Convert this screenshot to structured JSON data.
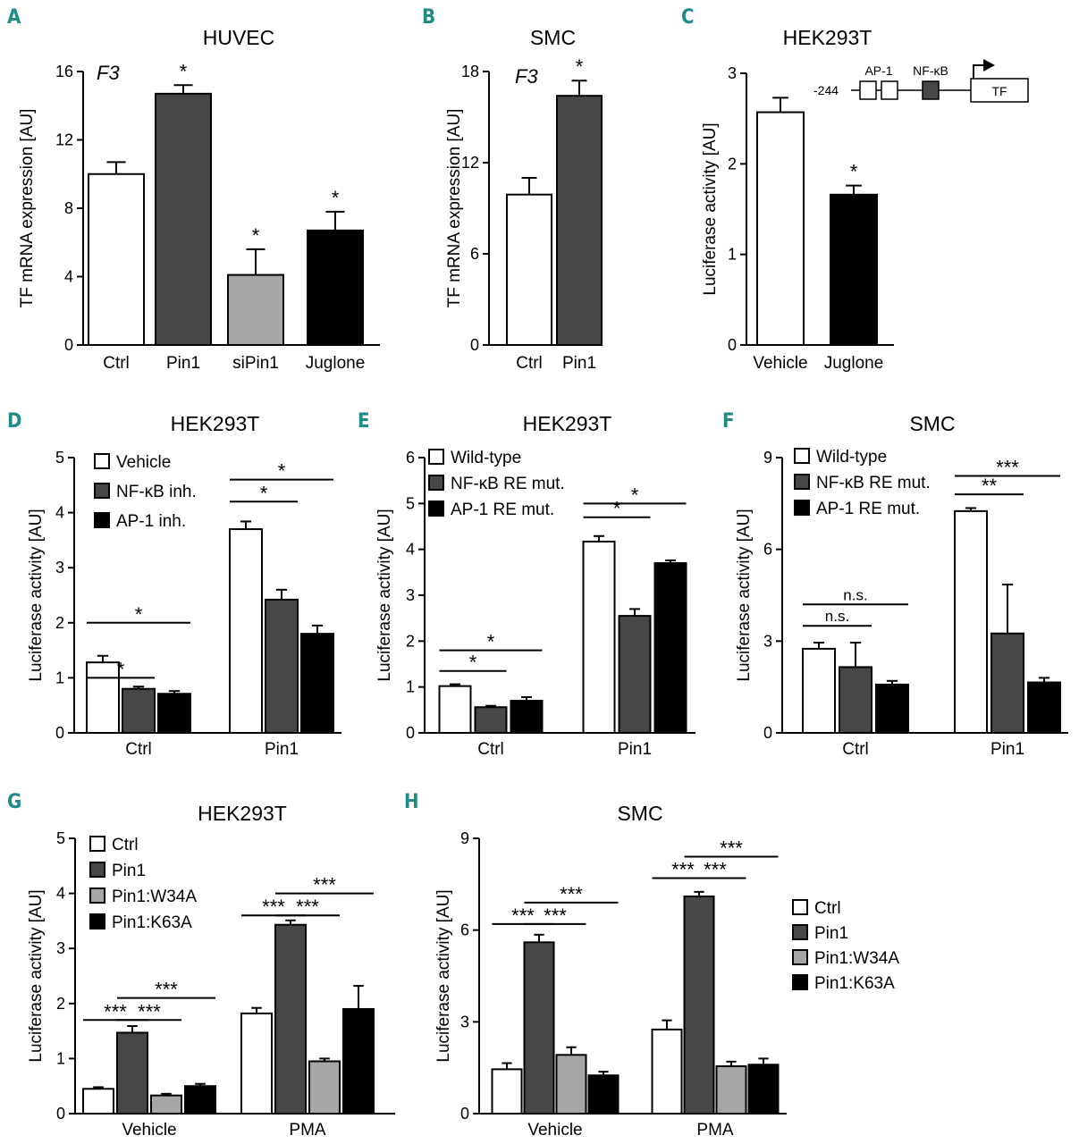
{
  "colors": {
    "white": "#ffffff",
    "dark_gray": "#474747",
    "light_gray": "#a6a6a6",
    "black": "#000000",
    "accent_letters": "#1f8a8a"
  },
  "chart_data": [
    {
      "id": "A",
      "letter": "A",
      "type": "bar",
      "title": "HUVEC",
      "gene": "F3",
      "ylabel": "TF mRNA expression [AU]",
      "ylim": [
        0,
        16
      ],
      "yticks": [
        0,
        4,
        8,
        12,
        16
      ],
      "categories": [
        "Ctrl",
        "Pin1",
        "siPin1",
        "Juglone"
      ],
      "values": [
        10,
        14.7,
        4.1,
        6.7
      ],
      "errors": [
        0.7,
        0.5,
        1.5,
        1.1
      ],
      "fills": [
        "white",
        "dark_gray",
        "light_gray",
        "black"
      ],
      "stars": [
        "",
        "*",
        "*",
        "*"
      ]
    },
    {
      "id": "B",
      "letter": "B",
      "type": "bar",
      "title": "SMC",
      "gene": "F3",
      "ylabel": "TF mRNA expression [AU]",
      "ylim": [
        0,
        18
      ],
      "yticks": [
        0,
        6,
        12,
        18
      ],
      "categories": [
        "Ctrl",
        "Pin1"
      ],
      "values": [
        9.9,
        16.4
      ],
      "errors": [
        1.1,
        1.0
      ],
      "fills": [
        "white",
        "dark_gray"
      ],
      "stars": [
        "",
        "*"
      ]
    },
    {
      "id": "C",
      "letter": "C",
      "type": "bar",
      "title": "HEK293T",
      "ylabel": "Luciferase activity [AU]",
      "ylim": [
        0,
        3
      ],
      "yticks": [
        0,
        1,
        2,
        3
      ],
      "categories": [
        "Vehicle",
        "Juglone"
      ],
      "values": [
        2.57,
        1.66
      ],
      "errors": [
        0.16,
        0.1
      ],
      "fills": [
        "white",
        "black"
      ],
      "stars": [
        "",
        "*"
      ],
      "promoter": {
        "position": "-244",
        "ap1": "AP-1",
        "nfkb": "NF-κB",
        "gene": "TF"
      }
    },
    {
      "id": "D",
      "letter": "D",
      "type": "bar",
      "title": "HEK293T",
      "ylabel": "Luciferase activity [AU]",
      "ylim": [
        0,
        5
      ],
      "yticks": [
        0,
        1,
        2,
        3,
        4,
        5
      ],
      "groups": [
        "Ctrl",
        "Pin1"
      ],
      "series": [
        {
          "name": "Vehicle",
          "fill": "white",
          "values": [
            1.28,
            3.7
          ],
          "errors": [
            0.12,
            0.14
          ]
        },
        {
          "name": "NF-κB inh.",
          "fill": "dark_gray",
          "values": [
            0.8,
            2.42
          ],
          "errors": [
            0.04,
            0.18
          ]
        },
        {
          "name": "AP-1 inh.",
          "fill": "black",
          "values": [
            0.71,
            1.8
          ],
          "errors": [
            0.05,
            0.15
          ]
        }
      ],
      "brackets": [
        {
          "group": 0,
          "from": 0,
          "to": 1,
          "level": 1.0,
          "label": "*"
        },
        {
          "group": 0,
          "from": 0,
          "to": 2,
          "level": 2.0,
          "label": "*"
        },
        {
          "group": 1,
          "from": 0,
          "to": 1,
          "level": 4.2,
          "label": "*"
        },
        {
          "group": 1,
          "from": 0,
          "to": 2,
          "level": 4.6,
          "label": "*"
        }
      ]
    },
    {
      "id": "E",
      "letter": "E",
      "type": "bar",
      "title": "HEK293T",
      "ylabel": "Luciferase activity [AU]",
      "ylim": [
        0,
        6
      ],
      "yticks": [
        0,
        1,
        2,
        3,
        4,
        5,
        6
      ],
      "groups": [
        "Ctrl",
        "Pin1"
      ],
      "series": [
        {
          "name": "Wild-type",
          "fill": "white",
          "values": [
            1.02,
            4.17
          ],
          "errors": [
            0.04,
            0.12
          ]
        },
        {
          "name": "NF-κB RE mut.",
          "fill": "dark_gray",
          "values": [
            0.56,
            2.55
          ],
          "errors": [
            0.03,
            0.15
          ]
        },
        {
          "name": "AP-1 RE mut.",
          "fill": "black",
          "values": [
            0.7,
            3.7
          ],
          "errors": [
            0.08,
            0.06
          ]
        }
      ],
      "brackets": [
        {
          "group": 0,
          "from": 0,
          "to": 1,
          "level": 1.35,
          "label": "*"
        },
        {
          "group": 0,
          "from": 0,
          "to": 2,
          "level": 1.8,
          "label": "*"
        },
        {
          "group": 1,
          "from": 0,
          "to": 1,
          "level": 4.7,
          "label": "*"
        },
        {
          "group": 1,
          "from": 0,
          "to": 2,
          "level": 5.0,
          "label": "*"
        }
      ]
    },
    {
      "id": "F",
      "letter": "F",
      "type": "bar",
      "title": "SMC",
      "ylabel": "Luciferase activity [AU]",
      "ylim": [
        0,
        9
      ],
      "yticks": [
        0,
        3,
        6,
        9
      ],
      "groups": [
        "Ctrl",
        "Pin1"
      ],
      "series": [
        {
          "name": "Wild-type",
          "fill": "white",
          "values": [
            2.75,
            7.25
          ],
          "errors": [
            0.2,
            0.1
          ]
        },
        {
          "name": "NF-κB RE mut.",
          "fill": "dark_gray",
          "values": [
            2.15,
            3.25
          ],
          "errors": [
            0.8,
            1.6
          ]
        },
        {
          "name": "AP-1 RE mut.",
          "fill": "black",
          "values": [
            1.58,
            1.65
          ],
          "errors": [
            0.12,
            0.15
          ]
        }
      ],
      "brackets": [
        {
          "group": 0,
          "from": 0,
          "to": 1,
          "level": 3.5,
          "label": "n.s."
        },
        {
          "group": 0,
          "from": 0,
          "to": 2,
          "level": 4.2,
          "label": "n.s."
        },
        {
          "group": 1,
          "from": 0,
          "to": 1,
          "level": 7.8,
          "label": "**"
        },
        {
          "group": 1,
          "from": 0,
          "to": 2,
          "level": 8.4,
          "label": "***"
        }
      ]
    },
    {
      "id": "G",
      "letter": "G",
      "type": "bar",
      "title": "HEK293T",
      "ylabel": "Luciferase activity [AU]",
      "ylim": [
        0,
        5
      ],
      "yticks": [
        0,
        1,
        2,
        3,
        4,
        5
      ],
      "groups": [
        "Vehicle",
        "PMA"
      ],
      "series": [
        {
          "name": "Ctrl",
          "fill": "white",
          "values": [
            0.45,
            1.82
          ],
          "errors": [
            0.03,
            0.1
          ]
        },
        {
          "name": "Pin1",
          "fill": "dark_gray",
          "values": [
            1.47,
            3.43
          ],
          "errors": [
            0.12,
            0.08
          ]
        },
        {
          "name": "Pin1:W34A",
          "fill": "light_gray",
          "values": [
            0.33,
            0.95
          ],
          "errors": [
            0.03,
            0.05
          ]
        },
        {
          "name": "Pin1:K63A",
          "fill": "black",
          "values": [
            0.5,
            1.9
          ],
          "errors": [
            0.04,
            0.42
          ]
        }
      ],
      "brackets": [
        {
          "group": 0,
          "from": 0,
          "to": 1,
          "level": 1.7,
          "label": "***"
        },
        {
          "group": 0,
          "from": 1,
          "to": 2,
          "level": 1.7,
          "label": "***"
        },
        {
          "group": 0,
          "from": 1,
          "to": 3,
          "level": 2.1,
          "label": "***"
        },
        {
          "group": 1,
          "from": 0,
          "to": 1,
          "level": 3.6,
          "label": "***"
        },
        {
          "group": 1,
          "from": 1,
          "to": 2,
          "level": 3.6,
          "label": "***"
        },
        {
          "group": 1,
          "from": 1,
          "to": 3,
          "level": 4.0,
          "label": "***"
        }
      ]
    },
    {
      "id": "H",
      "letter": "H",
      "type": "bar",
      "title": "SMC",
      "ylabel": "Luciferase activity [AU]",
      "ylim": [
        0,
        9
      ],
      "yticks": [
        0,
        3,
        6,
        9
      ],
      "groups": [
        "Vehicle",
        "PMA"
      ],
      "series": [
        {
          "name": "Ctrl",
          "fill": "white",
          "values": [
            1.45,
            2.75
          ],
          "errors": [
            0.2,
            0.3
          ]
        },
        {
          "name": "Pin1",
          "fill": "dark_gray",
          "values": [
            5.6,
            7.1
          ],
          "errors": [
            0.25,
            0.15
          ]
        },
        {
          "name": "Pin1:W34A",
          "fill": "light_gray",
          "values": [
            1.92,
            1.55
          ],
          "errors": [
            0.25,
            0.15
          ]
        },
        {
          "name": "Pin1:K63A",
          "fill": "black",
          "values": [
            1.25,
            1.6
          ],
          "errors": [
            0.12,
            0.2
          ]
        }
      ],
      "brackets": [
        {
          "group": 0,
          "from": 0,
          "to": 1,
          "level": 6.2,
          "label": "***"
        },
        {
          "group": 0,
          "from": 1,
          "to": 2,
          "level": 6.2,
          "label": "***"
        },
        {
          "group": 0,
          "from": 1,
          "to": 3,
          "level": 6.9,
          "label": "***"
        },
        {
          "group": 1,
          "from": 0,
          "to": 1,
          "level": 7.7,
          "label": "***"
        },
        {
          "group": 1,
          "from": 1,
          "to": 2,
          "level": 7.7,
          "label": "***"
        },
        {
          "group": 1,
          "from": 1,
          "to": 3,
          "level": 8.4,
          "label": "***"
        }
      ]
    }
  ]
}
